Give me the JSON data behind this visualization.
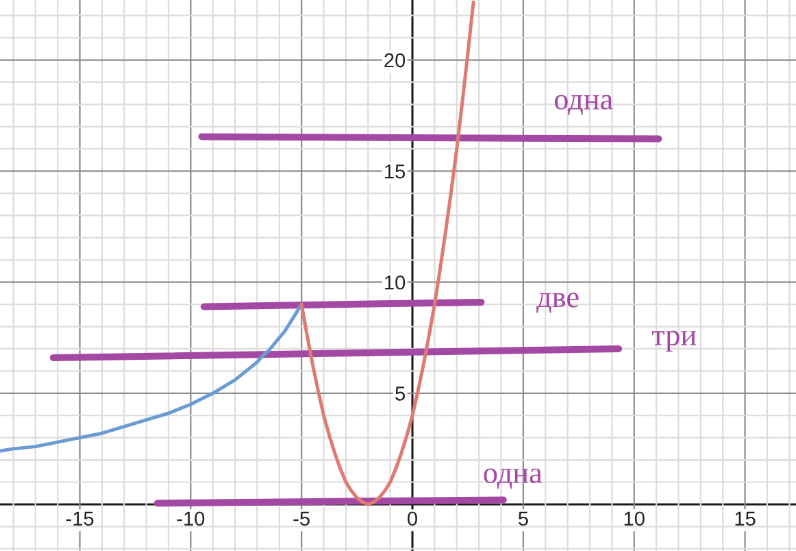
{
  "chart_data": {
    "type": "line",
    "xlim": [
      -18.6,
      17.3
    ],
    "ylim": [
      -2.1,
      22.7
    ],
    "xticks": [
      {
        "value": -18,
        "label": null
      },
      {
        "value": -17,
        "label": null
      },
      {
        "value": -16,
        "label": null
      },
      -15,
      {
        "value": -14,
        "label": null
      },
      {
        "value": -13,
        "label": null
      },
      {
        "value": -12,
        "label": null
      },
      {
        "value": -11,
        "label": null
      },
      -10,
      {
        "value": -9,
        "label": null
      },
      {
        "value": -8,
        "label": null
      },
      {
        "value": -7,
        "label": null
      },
      {
        "value": -6,
        "label": null
      },
      -5,
      {
        "value": -4,
        "label": null
      },
      {
        "value": -3,
        "label": null
      },
      {
        "value": -2,
        "label": null
      },
      {
        "value": -1,
        "label": null
      },
      0,
      {
        "value": 1,
        "label": null
      },
      {
        "value": 2,
        "label": null
      },
      {
        "value": 3,
        "label": null
      },
      {
        "value": 4,
        "label": null
      },
      5,
      {
        "value": 6,
        "label": null
      },
      {
        "value": 7,
        "label": null
      },
      {
        "value": 8,
        "label": null
      },
      {
        "value": 9,
        "label": null
      },
      10,
      {
        "value": 11,
        "label": null
      },
      {
        "value": 12,
        "label": null
      },
      {
        "value": 13,
        "label": null
      },
      {
        "value": 14,
        "label": null
      },
      15,
      {
        "value": 16,
        "label": null
      },
      {
        "value": 17,
        "label": null
      }
    ],
    "yticks": [
      {
        "value": -2,
        "label": null
      },
      {
        "value": -1,
        "label": null
      },
      {
        "value": 1,
        "label": null
      },
      {
        "value": 2,
        "label": null
      },
      {
        "value": 3,
        "label": null
      },
      {
        "value": 4,
        "label": null
      },
      5,
      {
        "value": 6,
        "label": null
      },
      {
        "value": 7,
        "label": null
      },
      {
        "value": 8,
        "label": null
      },
      {
        "value": 9,
        "label": null
      },
      10,
      {
        "value": 11,
        "label": null
      },
      {
        "value": 12,
        "label": null
      },
      {
        "value": 13,
        "label": null
      },
      {
        "value": 14,
        "label": null
      },
      15,
      {
        "value": 16,
        "label": null
      },
      {
        "value": 17,
        "label": null
      },
      {
        "value": 18,
        "label": null
      },
      {
        "value": 19,
        "label": null
      },
      20,
      {
        "value": 21,
        "label": null
      },
      {
        "value": 22,
        "label": null
      }
    ],
    "grid": true,
    "series": [
      {
        "color": "#a349a4",
        "x": [
          -9.5,
          11.1
        ],
        "values": [
          16.55,
          16.45
        ]
      },
      {
        "color": "#a349a4",
        "x": [
          -9.4,
          3.1
        ],
        "values": [
          8.9,
          9.1
        ]
      },
      {
        "color": "#a349a4",
        "x": [
          -16.2,
          9.3
        ],
        "values": [
          6.6,
          7.0
        ]
      },
      {
        "color": "#a349a4",
        "x": [
          -11.5,
          4.1
        ],
        "values": [
          0.05,
          0.2
        ]
      },
      {
        "color": "#6b9bd2",
        "x": [
          -18.6,
          -18,
          -17,
          -16,
          -15,
          -14,
          -13,
          -12,
          -11,
          -10,
          -9,
          -8,
          -7.5,
          -7,
          -6.75,
          -6.5,
          -6.25,
          -6,
          -5.75,
          -5.5,
          -5.25,
          -5
        ],
        "values": [
          2.4,
          2.5,
          2.6,
          2.8,
          3.0,
          3.2,
          3.5,
          3.8,
          4.1,
          4.5,
          5.0,
          5.6,
          6.0,
          6.4,
          6.7,
          6.9,
          7.2,
          7.5,
          7.8,
          8.2,
          8.6,
          9.0
        ]
      },
      {
        "color": "#de7a74",
        "x": [
          -5,
          -4.75,
          -4.5,
          -4.25,
          -4,
          -3.75,
          -3.5,
          -3.25,
          -3,
          -2.75,
          -2.5,
          -2.25,
          -2,
          -1.75,
          -1.5,
          -1.25,
          -1,
          -0.75,
          -0.5,
          -0.25,
          0,
          0.25,
          0.5,
          0.75,
          1,
          1.25,
          1.5,
          1.75,
          2,
          2.25,
          2.5,
          2.75
        ],
        "values": [
          9.0,
          7.6,
          6.3,
          5.1,
          4.0,
          3.1,
          2.3,
          1.6,
          1.0,
          0.6,
          0.3,
          0.1,
          0.0,
          0.1,
          0.3,
          0.6,
          1.0,
          1.6,
          2.3,
          3.1,
          4.0,
          5.1,
          6.3,
          7.6,
          9.0,
          10.6,
          12.3,
          14.1,
          16.0,
          18.1,
          20.3,
          22.6
        ]
      }
    ],
    "annotations": [
      "одна",
      "две",
      "три",
      "одна"
    ]
  }
}
